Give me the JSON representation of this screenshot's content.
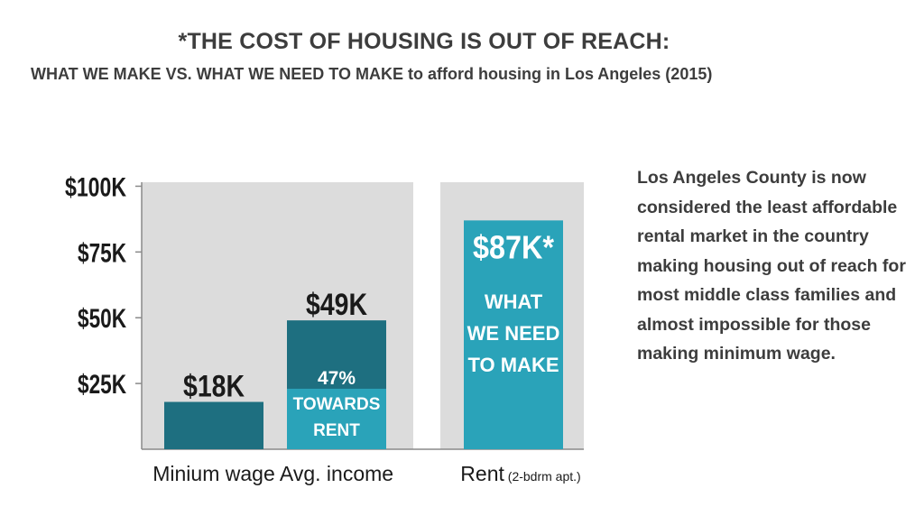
{
  "title": "*THE COST OF HOUSING IS OUT OF REACH:",
  "subtitle": "WHAT WE MAKE VS. WHAT WE NEED TO MAKE to afford housing in Los Angeles (2015)",
  "side_text": "Los Angeles County is now considered the least affordable rental market in the country making housing out of reach for most middle class families and almost impossible for those making minimum wage.",
  "colors": {
    "plot_bg": "#dcdcdc",
    "dark_teal": "#1e6f80",
    "light_teal": "#2aa3b9",
    "text": "#1a1a1a"
  },
  "chart_data": {
    "type": "bar",
    "ylim": [
      0,
      100
    ],
    "yticks": [
      {
        "value": 100,
        "label": "$100K"
      },
      {
        "value": 75,
        "label": "$75K"
      },
      {
        "value": 50,
        "label": "$50K"
      },
      {
        "value": 25,
        "label": "$25K"
      }
    ],
    "grid": false,
    "bars": [
      {
        "category": "Minium wage",
        "category_note": "",
        "value": 18,
        "value_label": "$18K",
        "color": "#1e6f80"
      },
      {
        "category": "Avg. income",
        "category_note": "",
        "value": 49,
        "value_label": "$49K",
        "color": "#1e6f80",
        "segment": {
          "value": 23,
          "color": "#2aa3b9",
          "label_lines": [
            "47%",
            "TOWARDS",
            "RENT"
          ]
        }
      },
      {
        "category": "Rent",
        "category_note": "(2-bdrm apt.)",
        "value": 87,
        "value_label": "$87K*",
        "color": "#2aa3b9",
        "inner_lines": [
          "WHAT",
          "WE NEED",
          "TO MAKE"
        ]
      }
    ]
  }
}
